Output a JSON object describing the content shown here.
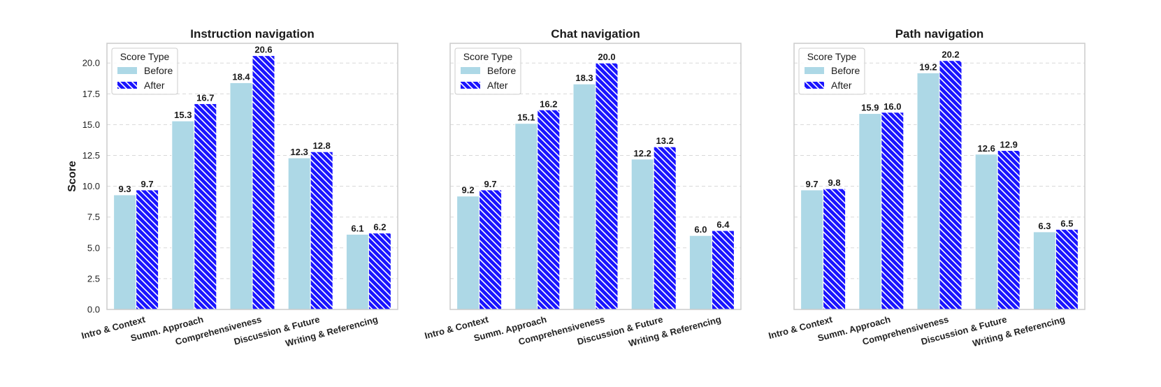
{
  "colors": {
    "before": "#add8e6",
    "after": "#1a14ff",
    "hatch": "#ffffff",
    "grid": "#d8d8d8",
    "frame": "#cccccc"
  },
  "chart_data": [
    {
      "type": "bar",
      "title": "Instruction navigation",
      "ylabel": "Score",
      "categories": [
        "Intro & Context",
        "Summ. Approach",
        "Comprehensiveness",
        "Discussion & Future",
        "Writing & Referencing"
      ],
      "series": [
        {
          "name": "Before",
          "values": [
            9.3,
            15.3,
            18.4,
            12.3,
            6.1
          ]
        },
        {
          "name": "After",
          "values": [
            9.7,
            16.7,
            20.6,
            12.8,
            6.2
          ]
        }
      ],
      "data_labels": [
        [
          "9.3",
          "15.3",
          "18.4",
          "12.3",
          "6.1"
        ],
        [
          "9.7",
          "16.7",
          "20.6",
          "12.8",
          "6.2"
        ]
      ],
      "ylim": [
        0,
        21.6
      ],
      "yticks": [
        "0.0",
        "2.5",
        "5.0",
        "7.5",
        "10.0",
        "12.5",
        "15.0",
        "17.5",
        "20.0"
      ],
      "grid": true,
      "legend": {
        "title": "Score Type",
        "placement": "top-left"
      }
    },
    {
      "type": "bar",
      "title": "Chat navigation",
      "ylabel": "",
      "categories": [
        "Intro & Context",
        "Summ. Approach",
        "Comprehensiveness",
        "Discussion & Future",
        "Writing & Referencing"
      ],
      "series": [
        {
          "name": "Before",
          "values": [
            9.2,
            15.1,
            18.3,
            12.2,
            6.0
          ]
        },
        {
          "name": "After",
          "values": [
            9.7,
            16.2,
            20.0,
            13.2,
            6.4
          ]
        }
      ],
      "data_labels": [
        [
          "9.2",
          "15.1",
          "18.3",
          "12.2",
          "6.0"
        ],
        [
          "9.7",
          "16.2",
          "20.0",
          "13.2",
          "6.4"
        ]
      ],
      "ylim": [
        0,
        21.6
      ],
      "yticks": [],
      "grid": true,
      "legend": {
        "title": "Score Type",
        "placement": "top-left"
      }
    },
    {
      "type": "bar",
      "title": "Path navigation",
      "ylabel": "",
      "categories": [
        "Intro & Context",
        "Summ. Approach",
        "Comprehensiveness",
        "Discussion & Future",
        "Writing & Referencing"
      ],
      "series": [
        {
          "name": "Before",
          "values": [
            9.7,
            15.9,
            19.2,
            12.6,
            6.3
          ]
        },
        {
          "name": "After",
          "values": [
            9.8,
            16.0,
            20.2,
            12.9,
            6.5
          ]
        }
      ],
      "data_labels": [
        [
          "9.7",
          "15.9",
          "19.2",
          "12.6",
          "6.3"
        ],
        [
          "9.8",
          "16.0",
          "20.2",
          "12.9",
          "6.5"
        ]
      ],
      "ylim": [
        0,
        21.6
      ],
      "yticks": [],
      "grid": true,
      "legend": {
        "title": "Score Type",
        "placement": "top-left"
      }
    }
  ]
}
